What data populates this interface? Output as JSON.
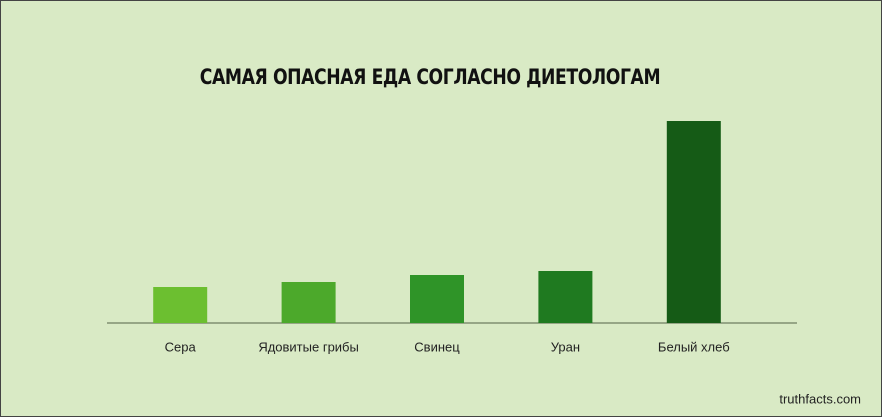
{
  "chart_data": {
    "type": "bar",
    "title": "САМАЯ ОПАСНАЯ ЕДА СОГЛАСНО ДИЕТОЛОГАМ",
    "categories": [
      "Сера",
      "Ядовитые грибы",
      "Свинец",
      "Уран",
      "Белый хлеб"
    ],
    "values": [
      36,
      41,
      48,
      52,
      202
    ],
    "colors": [
      "#6cbf30",
      "#4ca92b",
      "#2f9428",
      "#1f7a20",
      "#155b16"
    ],
    "ylim": [
      0,
      202
    ],
    "source": "truthfacts.com"
  }
}
